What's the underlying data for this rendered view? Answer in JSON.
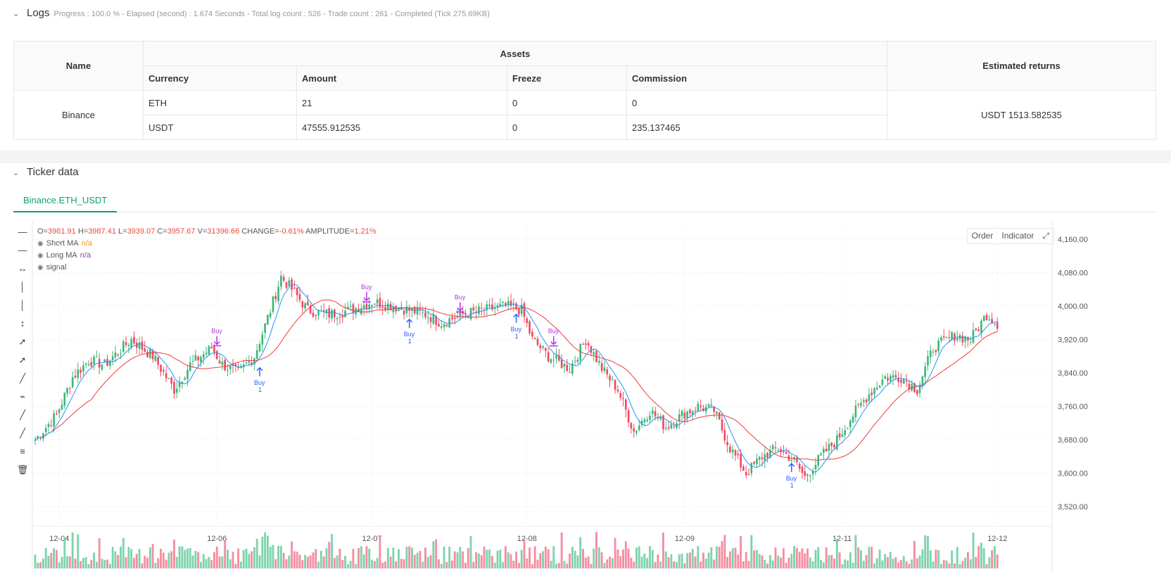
{
  "logs": {
    "title": "Logs",
    "summary": "Progress : 100.0 % - Elapsed (second) : 1.674  Seconds - Total log count : 526 - Trade count : 261 - Completed (Tick 275.69KB)"
  },
  "assets_table": {
    "headers": {
      "name": "Name",
      "assets": "Assets",
      "returns": "Estimated returns",
      "currency": "Currency",
      "amount": "Amount",
      "freeze": "Freeze",
      "commission": "Commission"
    },
    "exchange": "Binance",
    "returns_value": "USDT 1513.582535",
    "rows": [
      {
        "currency": "ETH",
        "amount": "21",
        "freeze": "0",
        "commission": "0"
      },
      {
        "currency": "USDT",
        "amount": "47555.912535",
        "freeze": "0",
        "commission": "235.137465"
      }
    ]
  },
  "ticker": {
    "title": "Ticker data",
    "tab": "Binance.ETH_USDT",
    "ohlc": {
      "o_label": "O=",
      "o": "3981.91",
      "h_label": "H=",
      "h": "3987.41",
      "l_label": "L=",
      "l": "3939.07",
      "c_label": "C=",
      "c": "3957.67",
      "v_label": "V=",
      "v": "31396.66",
      "change_label": "CHANGE=",
      "change": "-0.61%",
      "amp_label": "AMPLITUDE=",
      "amp": "1.21%"
    },
    "legend": [
      {
        "name": "Short MA",
        "value": "n/a",
        "color": "#f39c12"
      },
      {
        "name": "Long MA",
        "value": "n/a",
        "color": "#8e44ad"
      },
      {
        "name": "signal",
        "value": ""
      }
    ],
    "buttons": {
      "order": "Order",
      "indicator": "Indicator"
    }
  },
  "chart_data": {
    "type": "candlestick",
    "x_ticks": [
      "12-04",
      "12-06",
      "12-07",
      "12-08",
      "12-09",
      "12-11",
      "12-12"
    ],
    "y_ticks": [
      "4,160.00",
      "4,080.00",
      "4,000.00",
      "3,920.00",
      "3,840.00",
      "3,760.00",
      "3,680.00",
      "3,600.00",
      "3,520.00"
    ],
    "ylim": [
      3480,
      4190
    ],
    "colors": {
      "up": "#26a69a",
      "up_fill": "#3cb878",
      "down": "#ef4b63",
      "short_ma": "#2196f3",
      "long_ma": "#ef3b3b",
      "signal": "#b533e8",
      "buy": "#2962ff"
    },
    "anchors": [
      [
        0,
        3680
      ],
      [
        8,
        3740
      ],
      [
        14,
        3830
      ],
      [
        20,
        3870
      ],
      [
        26,
        3860
      ],
      [
        36,
        3920
      ],
      [
        44,
        3880
      ],
      [
        52,
        3800
      ],
      [
        58,
        3860
      ],
      [
        66,
        3900
      ],
      [
        70,
        3860
      ],
      [
        76,
        3840
      ],
      [
        82,
        3880
      ],
      [
        88,
        3990
      ],
      [
        92,
        4070
      ],
      [
        96,
        4040
      ],
      [
        102,
        3990
      ],
      [
        110,
        3980
      ],
      [
        118,
        3990
      ],
      [
        126,
        4010
      ],
      [
        134,
        4000
      ],
      [
        140,
        3990
      ],
      [
        146,
        3980
      ],
      [
        152,
        3960
      ],
      [
        160,
        3980
      ],
      [
        168,
        3990
      ],
      [
        176,
        4000
      ],
      [
        182,
        3990
      ],
      [
        186,
        3920
      ],
      [
        192,
        3880
      ],
      [
        200,
        3850
      ],
      [
        206,
        3920
      ],
      [
        212,
        3850
      ],
      [
        218,
        3800
      ],
      [
        224,
        3700
      ],
      [
        230,
        3750
      ],
      [
        236,
        3710
      ],
      [
        242,
        3740
      ],
      [
        248,
        3760
      ],
      [
        254,
        3750
      ],
      [
        260,
        3660
      ],
      [
        266,
        3600
      ],
      [
        272,
        3640
      ],
      [
        278,
        3660
      ],
      [
        284,
        3630
      ],
      [
        288,
        3590
      ],
      [
        294,
        3640
      ],
      [
        300,
        3680
      ],
      [
        306,
        3740
      ],
      [
        312,
        3790
      ],
      [
        318,
        3830
      ],
      [
        324,
        3830
      ],
      [
        330,
        3800
      ],
      [
        336,
        3900
      ],
      [
        344,
        3930
      ],
      [
        350,
        3920
      ],
      [
        356,
        3980
      ],
      [
        360,
        3958
      ]
    ],
    "signals": [
      {
        "label": "Buy",
        "type": "sell",
        "index": 68
      },
      {
        "label": "Buy",
        "type": "sell",
        "index": 124
      },
      {
        "label": "Buy",
        "type": "sell",
        "index": 159
      },
      {
        "label": "Buy",
        "type": "sell",
        "index": 194
      },
      {
        "label": "Buy",
        "qty": "1",
        "type": "buy",
        "index": 84
      },
      {
        "label": "Buy",
        "qty": "1",
        "type": "buy",
        "index": 140
      },
      {
        "label": "Buy",
        "qty": "1",
        "type": "buy",
        "index": 180
      },
      {
        "label": "Buy",
        "qty": "1",
        "type": "buy",
        "index": 283
      }
    ]
  }
}
